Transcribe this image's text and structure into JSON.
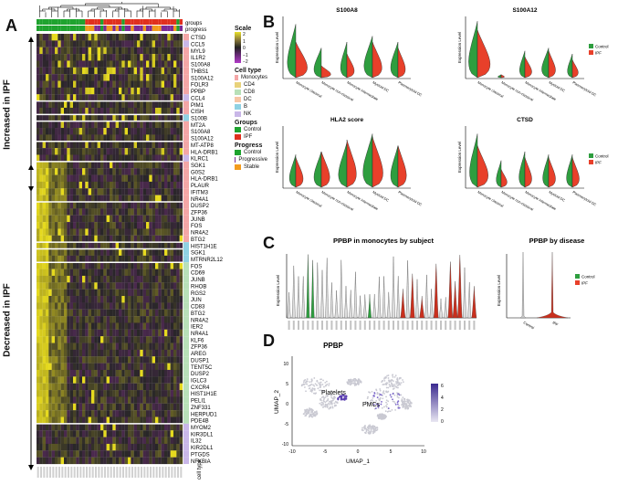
{
  "panels": {
    "a": "A",
    "b": "B",
    "c": "C",
    "d": "D"
  },
  "heatmap": {
    "top_labels": [
      "groups",
      "progress"
    ],
    "side_up": "Increased in IPF",
    "side_down": "Decreased in IPF",
    "bottom_label": "cell type",
    "genes": [
      "CTSD",
      "CCL5",
      "MYL9",
      "IL1R2",
      "S100A8",
      "THBS1",
      "S100A12",
      "FOLR3",
      "PPBP",
      "CCL4",
      "PIM1",
      "CISH",
      "S100B",
      "MT2A",
      "S100A8",
      "S100A12",
      "MT-ATP8",
      "HLA-DRB1",
      "KLRC1",
      "SGK1",
      "G0S2",
      "HLA-DRB1",
      "PLAUR",
      "IFITM3",
      "NR4A1",
      "DUSP2",
      "ZFP36",
      "JUNB",
      "FOS",
      "NR4A2",
      "BTG2",
      "HIST1H1E",
      "SGK1",
      "MTRNR2L12",
      "FOS",
      "CD69",
      "JUNB",
      "RHOB",
      "RGS2",
      "JUN",
      "CD83",
      "BTG2",
      "NR4A2",
      "IER2",
      "NR4A1",
      "KLF6",
      "ZFP36",
      "AREG",
      "DUSP1",
      "TENT5C",
      "DUSP2",
      "IGLC3",
      "CXCR4",
      "HIST1H1E",
      "PELI1",
      "ZNF331",
      "HERPUD1",
      "PDE4B",
      "MYOM2",
      "KIR3DL1",
      "IL32",
      "KIR2DL1",
      "PTGDS",
      "NFKBIA"
    ],
    "gene_colors": [
      "#f4a6a6",
      "#c9b7e8",
      "#f4a6a6",
      "#f4a6a6",
      "#f4a6a6",
      "#f4a6a6",
      "#f4a6a6",
      "#f4a6a6",
      "#f4a6a6",
      "#c9b7e8",
      "#f4a6a6",
      "#f4a6a6",
      "#8fd1e3",
      "#f4a6a6",
      "#f4a6a6",
      "#f4a6a6",
      "#f4a6a6",
      "#f4a6a6",
      "#c9b7e8",
      "#f4a6a6",
      "#f4a6a6",
      "#f4a6a6",
      "#f4a6a6",
      "#f4a6a6",
      "#f4a6a6",
      "#f4a6a6",
      "#f4a6a6",
      "#f4a6a6",
      "#f4a6a6",
      "#f4a6a6",
      "#f4a6a6",
      "#8fd1e3",
      "#8fd1e3",
      "#8fd1e3",
      "#b8e0b8",
      "#b8e0b8",
      "#b8e0b8",
      "#b8e0b8",
      "#b8e0b8",
      "#b8e0b8",
      "#b8e0b8",
      "#b8e0b8",
      "#b8e0b8",
      "#b8e0b8",
      "#b8e0b8",
      "#b8e0b8",
      "#b8e0b8",
      "#b8e0b8",
      "#b8e0b8",
      "#b8e0b8",
      "#b8e0b8",
      "#b8e0b8",
      "#b8e0b8",
      "#b8e0b8",
      "#b8e0b8",
      "#b8e0b8",
      "#b8e0b8",
      "#b8e0b8",
      "#c9b7e8",
      "#c9b7e8",
      "#c9b7e8",
      "#c9b7e8",
      "#c9b7e8",
      "#c9b7e8"
    ],
    "legend": {
      "scale_title": "Scale",
      "scale_ticks": [
        "2",
        "1",
        "0",
        "−1",
        "−2"
      ],
      "celltype_title": "Cell type",
      "celltypes": [
        {
          "label": "Monocytes",
          "color": "#f4a6a6"
        },
        {
          "label": "CD4",
          "color": "#e8d27a"
        },
        {
          "label": "CD8",
          "color": "#b8e0b8"
        },
        {
          "label": "DC",
          "color": "#f7c6a5"
        },
        {
          "label": "B",
          "color": "#8fd1e3"
        },
        {
          "label": "NK",
          "color": "#c9b7e8"
        }
      ],
      "groups_title": "Groups",
      "groups": [
        {
          "label": "Control",
          "color": "#1fa32f"
        },
        {
          "label": "IPF",
          "color": "#e0301e"
        }
      ],
      "progress_title": "Progress",
      "progress": [
        {
          "label": "Control",
          "color": "#1fa32f"
        },
        {
          "label": "Progressive",
          "color": "#7b2a96"
        },
        {
          "label": "Stable",
          "color": "#f39c1e"
        }
      ]
    }
  },
  "violin_b": {
    "plots": [
      {
        "title": "S100A8",
        "categories": [
          "Monocyte classical",
          "Monocyte non-classical",
          "Monocyte intermediate",
          "Myeloid DC",
          "Plasmacytoid DC"
        ]
      },
      {
        "title": "S100A12",
        "categories": [
          "Monocyte classical",
          "Monocyte non-classical",
          "Monocyte intermediate",
          "Myeloid DC",
          "Plasmacytoid DC"
        ]
      },
      {
        "title": "HLA2 score",
        "categories": [
          "Monocyte classical",
          "Monocyte non-classical",
          "Monocyte intermediate",
          "Myeloid DC",
          "Plasmacytoid DC"
        ]
      },
      {
        "title": "CTSD",
        "categories": [
          "Monocyte classical",
          "Monocyte non-classical",
          "Monocyte intermediate",
          "Myeloid DC",
          "Plasmacytoid DC"
        ]
      }
    ],
    "ylabel": "Expression Level",
    "legend": [
      {
        "label": "Control",
        "color": "#2e9e3f"
      },
      {
        "label": "IPF",
        "color": "#e8402a"
      }
    ]
  },
  "violin_c": {
    "title1": "PPBP in monocytes by subject",
    "title2": "PPBP by disease",
    "ylabel": "Expression Level",
    "categories2": [
      "Control",
      "IPF"
    ],
    "legend": [
      {
        "label": "Control",
        "color": "#2e9e3f"
      },
      {
        "label": "IPF",
        "color": "#e8402a"
      }
    ]
  },
  "umap": {
    "title": "PPBP",
    "xlabel": "UMAP_1",
    "ylabel": "UMAP_2",
    "annotations": [
      "Platelets",
      "PMCs"
    ],
    "xticks": [
      "-10",
      "-5",
      "0",
      "5",
      "10"
    ],
    "yticks": [
      "10",
      "5",
      "0",
      "-5",
      "-10"
    ],
    "scale_ticks": [
      "6",
      "4",
      "2",
      "0"
    ]
  },
  "chart_data": {
    "type": "heatmap",
    "title": "",
    "rows": [
      "CTSD",
      "CCL5",
      "MYL9",
      "IL1R2",
      "S100A8",
      "THBS1",
      "S100A12",
      "FOLR3",
      "PPBP",
      "CCL4",
      "PIM1",
      "CISH",
      "S100B",
      "MT2A",
      "S100A8",
      "S100A12",
      "MT-ATP8",
      "HLA-DRB1",
      "KLRC1",
      "SGK1",
      "G0S2",
      "HLA-DRB1",
      "PLAUR",
      "IFITM3",
      "NR4A1",
      "DUSP2",
      "ZFP36",
      "JUNB",
      "FOS",
      "NR4A2",
      "BTG2",
      "HIST1H1E",
      "SGK1",
      "MTRNR2L12",
      "FOS",
      "CD69",
      "JUNB",
      "RHOB",
      "RGS2",
      "JUN",
      "CD83",
      "BTG2",
      "NR4A2",
      "IER2",
      "NR4A1",
      "KLF6",
      "ZFP36",
      "AREG",
      "DUSP1",
      "TENT5C",
      "DUSP2",
      "IGLC3",
      "CXCR4",
      "HIST1H1E",
      "PELI1",
      "ZNF331",
      "HERPUD1",
      "PDE4B",
      "MYOM2",
      "KIR3DL1",
      "IL32",
      "KIR2DL1",
      "PTGDS",
      "NFKBIA"
    ],
    "scale_range": [
      -2,
      2
    ],
    "groups": [
      "Control",
      "IPF"
    ],
    "progress": [
      "Control",
      "Progressive",
      "Stable"
    ]
  }
}
